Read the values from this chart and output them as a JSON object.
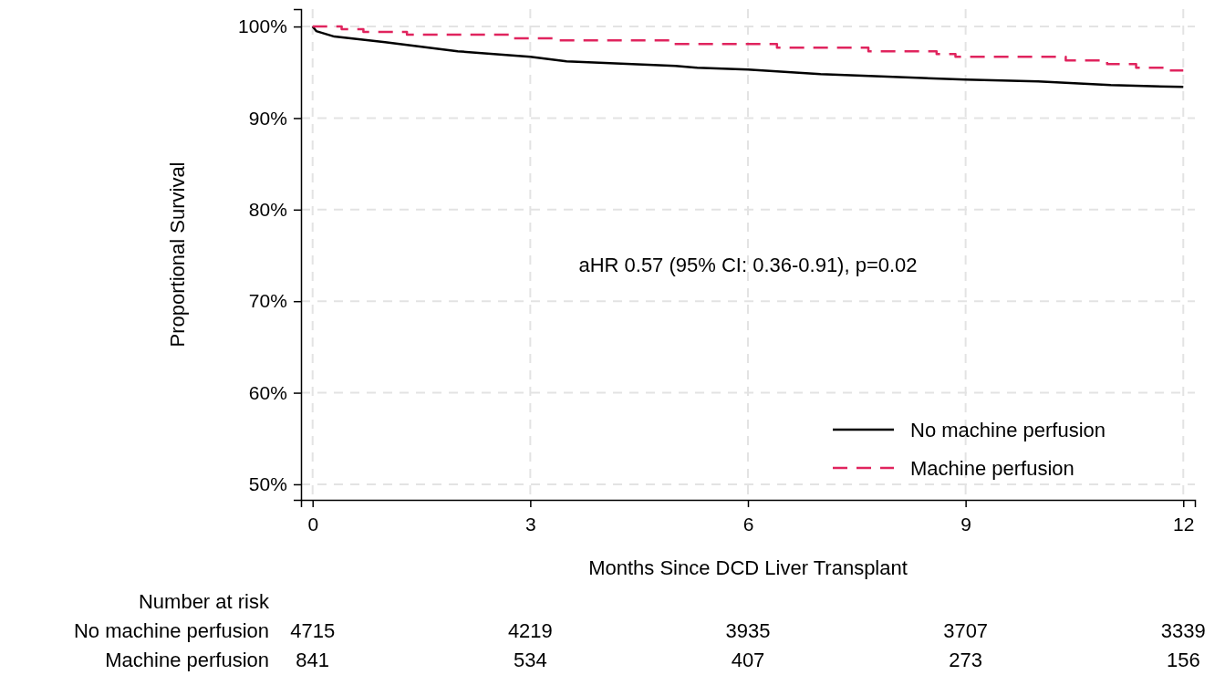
{
  "chart_data": {
    "type": "line",
    "xlabel": "Months Since DCD Liver Transplant",
    "ylabel": "Proportional Survival",
    "xlim": [
      -0.16,
      12.16
    ],
    "xticks": [
      0,
      3,
      6,
      9,
      12
    ],
    "ylim": [
      48.3,
      101.9
    ],
    "yticks": [
      {
        "value": 50,
        "label": "50%"
      },
      {
        "value": 60,
        "label": "60%"
      },
      {
        "value": 70,
        "label": "70%"
      },
      {
        "value": 80,
        "label": "80%"
      },
      {
        "value": 90,
        "label": "90%"
      },
      {
        "value": 100,
        "label": "100%"
      }
    ],
    "grid": true,
    "legend": "bottom right",
    "series": [
      {
        "name": "No machine perfusion",
        "color": "#000000",
        "line_style": "solid",
        "x": [
          0,
          0.05,
          0.3,
          1,
          2,
          3,
          3.5,
          5,
          5.3,
          6,
          7,
          8,
          9,
          10,
          11,
          12
        ],
        "values": [
          100,
          99.5,
          98.9,
          98.3,
          97.3,
          96.7,
          96.2,
          95.7,
          95.5,
          95.3,
          94.8,
          94.5,
          94.2,
          94.0,
          93.6,
          93.4
        ]
      },
      {
        "name": "Machine perfusion",
        "color": "#e0245e",
        "type": "step",
        "line_style": "dashed",
        "x": [
          0,
          0.4,
          0.7,
          1.3,
          2.75,
          3.4,
          4.96,
          6.4,
          7.66,
          8.6,
          8.86,
          10.38,
          10.95,
          11.35,
          11.75,
          12
        ],
        "values": [
          100,
          99.7,
          99.4,
          99.1,
          98.7,
          98.5,
          98.1,
          97.7,
          97.3,
          97.0,
          96.7,
          96.3,
          95.9,
          95.5,
          95.2,
          95.2
        ]
      }
    ],
    "annotations": [
      "aHR 0.57 (95% CI: 0.36-0.91), p=0.02",
      "Number at risk",
      "No machine perfusion",
      "4715",
      "4219",
      "3935",
      "3707",
      "3339",
      "Machine perfusion",
      "841",
      "534",
      "407",
      "273",
      "156"
    ]
  }
}
